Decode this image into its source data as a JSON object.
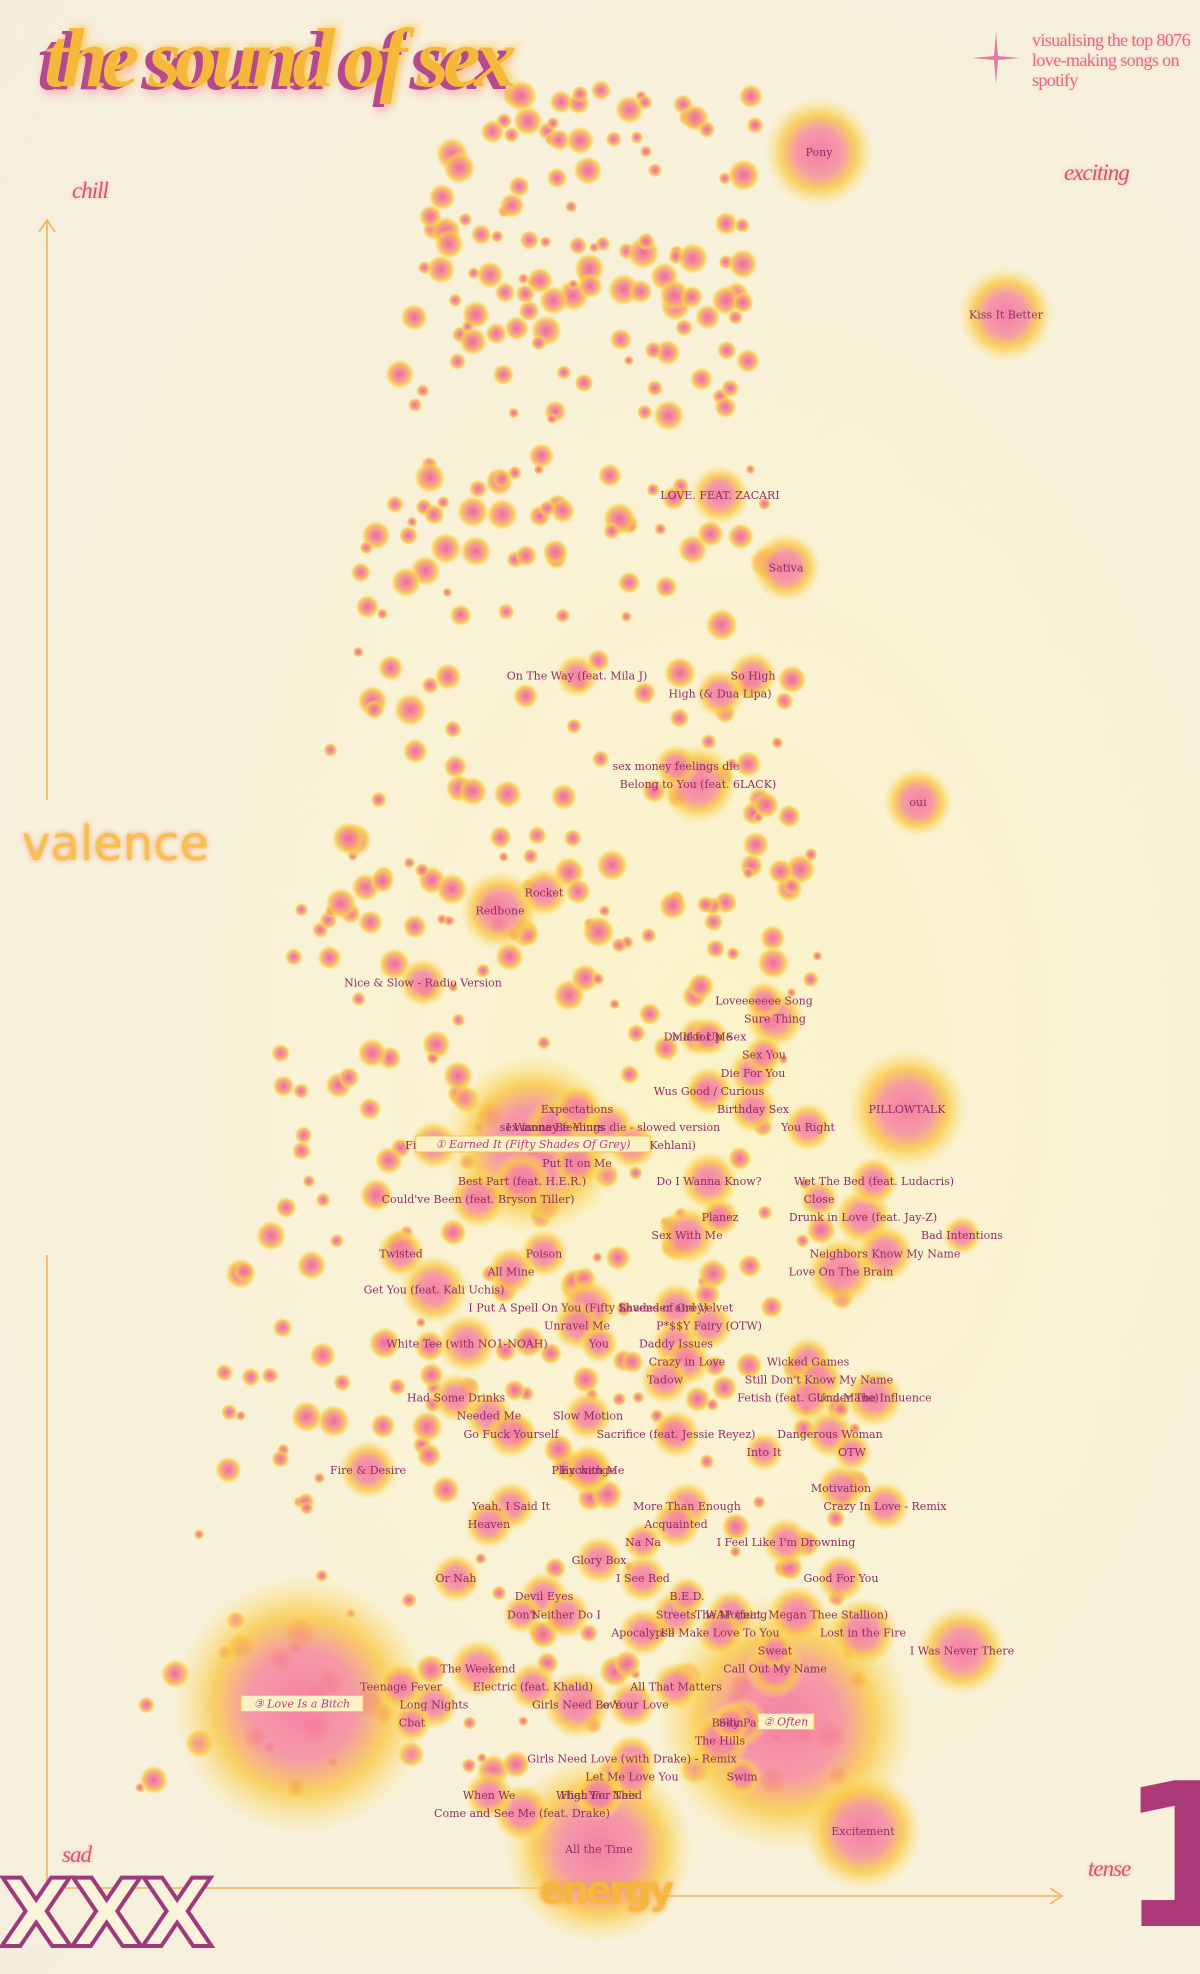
{
  "title": "the sound of sex",
  "subtitle": "visualising the top 8076 love-making songs on spotify",
  "corner_labels": {
    "top_left": "chill",
    "top_right": "exciting",
    "bottom_left": "sad",
    "bottom_right": "tense"
  },
  "decoration": {
    "top_right_glyph": "sparkle-icon",
    "bottom_right_number": "1",
    "bottom_left_text": "XXX"
  },
  "colors": {
    "accent_pink": "#d44f8a",
    "accent_yellow": "#f6c14a",
    "dark_magenta": "#ad3a78",
    "background": "#f7efdc",
    "bubble_core": "#f47aa2",
    "bubble_glow": "#f9d04a"
  },
  "chart_data": {
    "type": "scatter",
    "xlabel": "energy",
    "ylabel": "valence",
    "xlim": [
      0,
      1
    ],
    "ylim": [
      0,
      1
    ],
    "grid": false,
    "size_encoding": "popularity",
    "highlights": [
      {
        "rank": "①",
        "label": "Earned It (Fifty Shades Of Grey)",
        "x": 0.43,
        "y": 0.41,
        "r": 90
      },
      {
        "rank": "②",
        "label": "Often",
        "x": 0.66,
        "y": 0.09,
        "r": 130
      },
      {
        "rank": "③",
        "label": "Love Is a Bitch",
        "x": 0.22,
        "y": 0.1,
        "r": 130
      }
    ],
    "songs": [
      {
        "label": "Pony",
        "x": 0.69,
        "y": 0.96,
        "r": 55
      },
      {
        "label": "Kiss It Better",
        "x": 0.86,
        "y": 0.87,
        "r": 48
      },
      {
        "label": "LOVE. FEAT. ZACARI",
        "x": 0.6,
        "y": 0.77,
        "r": 30
      },
      {
        "label": "Sativa",
        "x": 0.66,
        "y": 0.73,
        "r": 35
      },
      {
        "label": "On The Way (feat. Mila J)",
        "x": 0.47,
        "y": 0.67,
        "r": 22
      },
      {
        "label": "So High",
        "x": 0.63,
        "y": 0.67,
        "r": 25
      },
      {
        "label": "High (& Dua Lipa)",
        "x": 0.6,
        "y": 0.66,
        "r": 25
      },
      {
        "label": "sex money feelings die",
        "x": 0.56,
        "y": 0.62,
        "r": 22
      },
      {
        "label": "Belong to You (feat. 6LACK)",
        "x": 0.58,
        "y": 0.61,
        "r": 40
      },
      {
        "label": "oui",
        "x": 0.78,
        "y": 0.6,
        "r": 35
      },
      {
        "label": "Rocket",
        "x": 0.44,
        "y": 0.55,
        "r": 25
      },
      {
        "label": "Redbone",
        "x": 0.4,
        "y": 0.54,
        "r": 40
      },
      {
        "label": "Nice & Slow - Radio Version",
        "x": 0.33,
        "y": 0.5,
        "r": 25
      },
      {
        "label": "Loveeeeeee Song",
        "x": 0.64,
        "y": 0.49,
        "r": 20
      },
      {
        "label": "Sure Thing",
        "x": 0.65,
        "y": 0.48,
        "r": 30
      },
      {
        "label": "Do It for Me",
        "x": 0.58,
        "y": 0.47,
        "r": 20
      },
      {
        "label": "Make Up Sex",
        "x": 0.59,
        "y": 0.47,
        "r": 20
      },
      {
        "label": "Sex You",
        "x": 0.64,
        "y": 0.46,
        "r": 20
      },
      {
        "label": "Die For You",
        "x": 0.63,
        "y": 0.45,
        "r": 25
      },
      {
        "label": "Wus Good / Curious",
        "x": 0.59,
        "y": 0.44,
        "r": 25
      },
      {
        "label": "Expectations",
        "x": 0.47,
        "y": 0.43,
        "r": 25
      },
      {
        "label": "Birthday Sex",
        "x": 0.63,
        "y": 0.43,
        "r": 25
      },
      {
        "label": "sex money feelings die - slowed version",
        "x": 0.5,
        "y": 0.42,
        "r": 25
      },
      {
        "label": "I Wanna Be Yours",
        "x": 0.45,
        "y": 0.42,
        "r": 30
      },
      {
        "label": "You Right",
        "x": 0.68,
        "y": 0.42,
        "r": 25
      },
      {
        "label": "PILLOWTALK",
        "x": 0.77,
        "y": 0.43,
        "r": 60
      },
      {
        "label": "First Fuck",
        "x": 0.34,
        "y": 0.41,
        "r": 25
      },
      {
        "label": "wRONG (feat. Kehlani)",
        "x": 0.52,
        "y": 0.41,
        "r": 25
      },
      {
        "label": "Put It on Me",
        "x": 0.47,
        "y": 0.4,
        "r": 25
      },
      {
        "label": "Best Part (feat. H.E.R.)",
        "x": 0.42,
        "y": 0.39,
        "r": 30
      },
      {
        "label": "Do I Wanna Know?",
        "x": 0.59,
        "y": 0.39,
        "r": 30
      },
      {
        "label": "Wet The Bed (feat. Ludacris)",
        "x": 0.74,
        "y": 0.39,
        "r": 25
      },
      {
        "label": "Could've Been (feat. Bryson Tiller)",
        "x": 0.38,
        "y": 0.38,
        "r": 30
      },
      {
        "label": "Close",
        "x": 0.69,
        "y": 0.38,
        "r": 20
      },
      {
        "label": "Planez",
        "x": 0.6,
        "y": 0.37,
        "r": 20
      },
      {
        "label": "Drunk in Love (feat. Jay-Z)",
        "x": 0.73,
        "y": 0.37,
        "r": 30
      },
      {
        "label": "Bad Intentions",
        "x": 0.82,
        "y": 0.36,
        "r": 20
      },
      {
        "label": "Sex With Me",
        "x": 0.57,
        "y": 0.36,
        "r": 30
      },
      {
        "label": "Neighbors Know My Name",
        "x": 0.75,
        "y": 0.35,
        "r": 30
      },
      {
        "label": "Twisted",
        "x": 0.31,
        "y": 0.35,
        "r": 25
      },
      {
        "label": "Poison",
        "x": 0.44,
        "y": 0.35,
        "r": 25
      },
      {
        "label": "Love On The Brain",
        "x": 0.71,
        "y": 0.34,
        "r": 35
      },
      {
        "label": "All Mine",
        "x": 0.41,
        "y": 0.34,
        "r": 25
      },
      {
        "label": "Get You (feat. Kali Uchis)",
        "x": 0.34,
        "y": 0.33,
        "r": 35
      },
      {
        "label": "I Put A Spell On You (Fifty Shades of Grey)",
        "x": 0.48,
        "y": 0.32,
        "r": 30
      },
      {
        "label": "Lavender and Velvet",
        "x": 0.56,
        "y": 0.32,
        "r": 25
      },
      {
        "label": "P*$$Y Fairy (OTW)",
        "x": 0.59,
        "y": 0.31,
        "r": 25
      },
      {
        "label": "Unravel Me",
        "x": 0.47,
        "y": 0.31,
        "r": 25
      },
      {
        "label": "Daddy Issues",
        "x": 0.56,
        "y": 0.3,
        "r": 25
      },
      {
        "label": "You",
        "x": 0.49,
        "y": 0.3,
        "r": 20
      },
      {
        "label": "White Tee (with NO1-NOAH)",
        "x": 0.37,
        "y": 0.3,
        "r": 30
      },
      {
        "label": "Wicked Games",
        "x": 0.68,
        "y": 0.29,
        "r": 25
      },
      {
        "label": "Crazy in Love",
        "x": 0.57,
        "y": 0.29,
        "r": 25
      },
      {
        "label": "Still Don't Know My Name",
        "x": 0.69,
        "y": 0.28,
        "r": 25
      },
      {
        "label": "Tadow",
        "x": 0.55,
        "y": 0.28,
        "r": 25
      },
      {
        "label": "Under The Influence",
        "x": 0.74,
        "y": 0.27,
        "r": 30
      },
      {
        "label": "Had Some Drinks",
        "x": 0.36,
        "y": 0.27,
        "r": 25
      },
      {
        "label": "Fetish (feat. Gucci Mane)",
        "x": 0.68,
        "y": 0.27,
        "r": 25
      },
      {
        "label": "Needed Me",
        "x": 0.39,
        "y": 0.26,
        "r": 25
      },
      {
        "label": "Slow Motion",
        "x": 0.48,
        "y": 0.26,
        "r": 25
      },
      {
        "label": "Go Fuck Yourself",
        "x": 0.41,
        "y": 0.25,
        "r": 25
      },
      {
        "label": "Sacrifice (feat. Jessie Reyez)",
        "x": 0.56,
        "y": 0.25,
        "r": 25
      },
      {
        "label": "Dangerous Woman",
        "x": 0.7,
        "y": 0.25,
        "r": 25
      },
      {
        "label": "Into It",
        "x": 0.64,
        "y": 0.24,
        "r": 20
      },
      {
        "label": "OTW",
        "x": 0.72,
        "y": 0.24,
        "r": 20
      },
      {
        "label": "Fire & Desire",
        "x": 0.28,
        "y": 0.23,
        "r": 30
      },
      {
        "label": "Exchange",
        "x": 0.48,
        "y": 0.23,
        "r": 25
      },
      {
        "label": "Play with Me",
        "x": 0.48,
        "y": 0.23,
        "r": 25
      },
      {
        "label": "Motivation",
        "x": 0.71,
        "y": 0.22,
        "r": 25
      },
      {
        "label": "Crazy In Love - Remix",
        "x": 0.75,
        "y": 0.21,
        "r": 25
      },
      {
        "label": "More Than Enough",
        "x": 0.57,
        "y": 0.21,
        "r": 25
      },
      {
        "label": "Yeah, I Said It",
        "x": 0.41,
        "y": 0.21,
        "r": 25
      },
      {
        "label": "Heaven",
        "x": 0.39,
        "y": 0.2,
        "r": 25
      },
      {
        "label": "Acquainted",
        "x": 0.56,
        "y": 0.2,
        "r": 25
      },
      {
        "label": "Na Na",
        "x": 0.53,
        "y": 0.19,
        "r": 20
      },
      {
        "label": "I Feel Like I'm Drowning",
        "x": 0.66,
        "y": 0.19,
        "r": 25
      },
      {
        "label": "Glory Box",
        "x": 0.49,
        "y": 0.18,
        "r": 25
      },
      {
        "label": "I See Red",
        "x": 0.53,
        "y": 0.17,
        "r": 25
      },
      {
        "label": "Or Nah",
        "x": 0.36,
        "y": 0.17,
        "r": 25
      },
      {
        "label": "Good For You",
        "x": 0.71,
        "y": 0.17,
        "r": 25
      },
      {
        "label": "Devil Eyes",
        "x": 0.44,
        "y": 0.16,
        "r": 25
      },
      {
        "label": "B.E.D.",
        "x": 0.57,
        "y": 0.16,
        "r": 20
      },
      {
        "label": "WAP (feat. Megan Thee Stallion)",
        "x": 0.67,
        "y": 0.15,
        "r": 30
      },
      {
        "label": "Neither Do I",
        "x": 0.46,
        "y": 0.15,
        "r": 25
      },
      {
        "label": "Streets",
        "x": 0.56,
        "y": 0.15,
        "r": 25
      },
      {
        "label": "The Morning",
        "x": 0.61,
        "y": 0.15,
        "r": 25
      },
      {
        "label": "Don't",
        "x": 0.42,
        "y": 0.15,
        "r": 20
      },
      {
        "label": "I'll Make Love To You",
        "x": 0.6,
        "y": 0.14,
        "r": 25
      },
      {
        "label": "Apocalypse",
        "x": 0.53,
        "y": 0.14,
        "r": 25
      },
      {
        "label": "Lost in the Fire",
        "x": 0.73,
        "y": 0.14,
        "r": 35
      },
      {
        "label": "Sweat",
        "x": 0.65,
        "y": 0.13,
        "r": 20
      },
      {
        "label": "I Was Never There",
        "x": 0.82,
        "y": 0.13,
        "r": 45
      },
      {
        "label": "The Weekend",
        "x": 0.38,
        "y": 0.12,
        "r": 30
      },
      {
        "label": "Call Out My Name",
        "x": 0.65,
        "y": 0.12,
        "r": 30
      },
      {
        "label": "Teenage Fever",
        "x": 0.31,
        "y": 0.11,
        "r": 25
      },
      {
        "label": "Electric (feat. Khalid)",
        "x": 0.43,
        "y": 0.11,
        "r": 25
      },
      {
        "label": "All That Matters",
        "x": 0.56,
        "y": 0.11,
        "r": 25
      },
      {
        "label": "Be Your Love",
        "x": 0.52,
        "y": 0.1,
        "r": 25
      },
      {
        "label": "Long Nights",
        "x": 0.34,
        "y": 0.1,
        "r": 25
      },
      {
        "label": "Girls Need Love",
        "x": 0.47,
        "y": 0.1,
        "r": 35
      },
      {
        "label": "Body Party",
        "x": 0.62,
        "y": 0.09,
        "r": 25
      },
      {
        "label": "Skin",
        "x": 0.61,
        "y": 0.09,
        "r": 20
      },
      {
        "label": "Cbat",
        "x": 0.32,
        "y": 0.09,
        "r": 20
      },
      {
        "label": "The Hills",
        "x": 0.6,
        "y": 0.08,
        "r": 30
      },
      {
        "label": "Girls Need Love (with Drake) - Remix",
        "x": 0.52,
        "y": 0.07,
        "r": 25
      },
      {
        "label": "Let Me Love You",
        "x": 0.52,
        "y": 0.06,
        "r": 25
      },
      {
        "label": "Swim",
        "x": 0.62,
        "y": 0.06,
        "r": 20
      },
      {
        "label": "High For This",
        "x": 0.49,
        "y": 0.05,
        "r": 25
      },
      {
        "label": "When We",
        "x": 0.39,
        "y": 0.05,
        "r": 25
      },
      {
        "label": "What You Need",
        "x": 0.49,
        "y": 0.05,
        "r": 25
      },
      {
        "label": "Come and See Me (feat. Drake)",
        "x": 0.42,
        "y": 0.04,
        "r": 30
      },
      {
        "label": "Excitement",
        "x": 0.73,
        "y": 0.03,
        "r": 60
      },
      {
        "label": "All the Time",
        "x": 0.49,
        "y": 0.02,
        "r": 95
      }
    ]
  }
}
